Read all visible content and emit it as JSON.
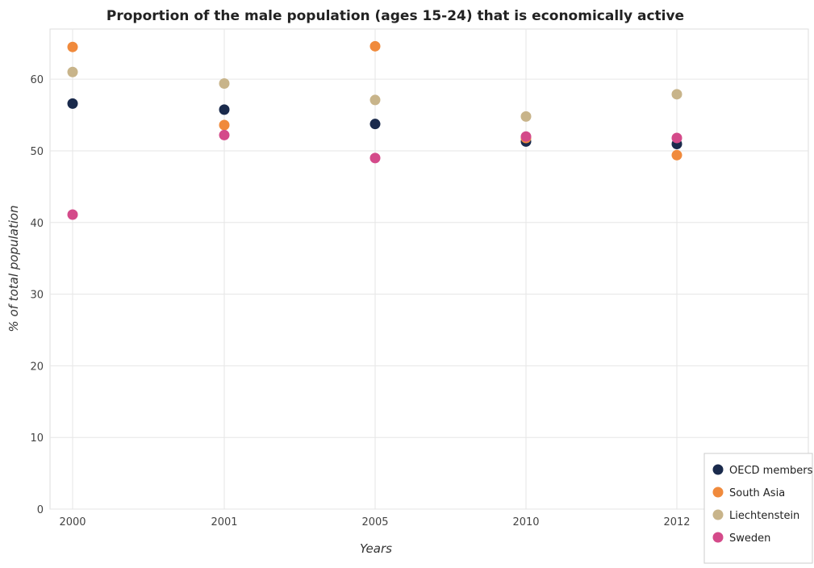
{
  "chart_data": {
    "type": "scatter",
    "title": "Proportion of the male population (ages 15-24) that is economically active",
    "xlabel": "Years",
    "ylabel": "% of total population",
    "categories": [
      "2000",
      "2001",
      "2005",
      "2010",
      "2012"
    ],
    "ylim": [
      0,
      67
    ],
    "yticks": [
      0,
      10,
      20,
      30,
      40,
      50,
      60
    ],
    "grid": true,
    "legend_position": "bottom-right",
    "series": [
      {
        "name": "OECD members",
        "color": "#1a2a4c",
        "values": [
          56.6,
          55.75,
          53.75,
          51.3,
          50.95
        ]
      },
      {
        "name": "South Asia",
        "color": "#f08a3c",
        "values": [
          64.5,
          53.6,
          64.6,
          51.8,
          49.4
        ]
      },
      {
        "name": "Liechtenstein",
        "color": "#c8b48a",
        "values": [
          61.0,
          59.4,
          57.1,
          54.8,
          57.9
        ]
      },
      {
        "name": "Sweden",
        "color": "#d44a8a",
        "values": [
          41.1,
          52.2,
          49.0,
          52.0,
          51.8
        ]
      }
    ]
  }
}
